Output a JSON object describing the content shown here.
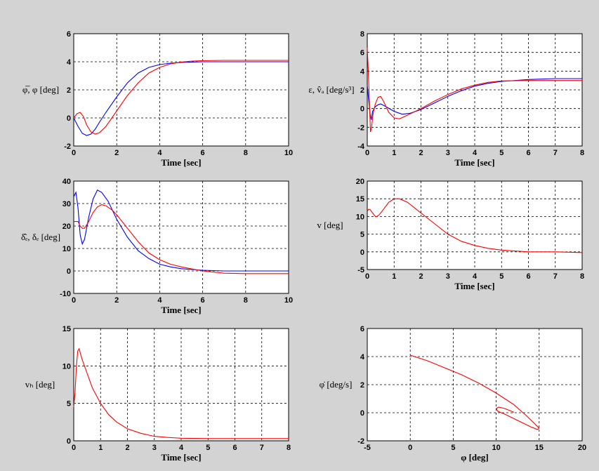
{
  "colors": {
    "background": "#d3d3d3",
    "plot_bg": "#ffffff",
    "blue": "#0000ff",
    "red": "#ff0000"
  },
  "chart_data": [
    {
      "type": "line",
      "xlabel": "Time [sec]",
      "ylabel": "φ̅, φ [deg]",
      "xlim": [
        0,
        10
      ],
      "ylim": [
        -2,
        6
      ],
      "xticks": [
        "0",
        "2",
        "4",
        "6",
        "8",
        "10"
      ],
      "yticks": [
        "-2",
        "0",
        "2",
        "4",
        "6"
      ],
      "grid": true,
      "series": [
        {
          "color": "#0000ff",
          "x": [
            0,
            0.2,
            0.4,
            0.6,
            0.8,
            1,
            1.2,
            1.5,
            2,
            2.5,
            3,
            3.5,
            4,
            4.5,
            5,
            5.5,
            6,
            7,
            8,
            10
          ],
          "y": [
            0,
            -0.6,
            -1.1,
            -1.25,
            -1.15,
            -0.8,
            -0.3,
            0.4,
            1.5,
            2.5,
            3.2,
            3.6,
            3.8,
            3.9,
            3.95,
            3.98,
            4,
            4,
            4,
            4
          ]
        },
        {
          "color": "#ff0000",
          "x": [
            0,
            0.15,
            0.3,
            0.45,
            0.6,
            0.8,
            1,
            1.2,
            1.5,
            2,
            2.5,
            3,
            3.5,
            4,
            4.5,
            5,
            5.5,
            6,
            7,
            8,
            10
          ],
          "y": [
            0,
            0.3,
            0.4,
            0.1,
            -0.5,
            -1,
            -1.15,
            -1.05,
            -0.6,
            0.5,
            1.6,
            2.5,
            3.2,
            3.6,
            3.85,
            3.98,
            4.05,
            4.08,
            4.1,
            4.1,
            4.1
          ]
        }
      ]
    },
    {
      "type": "line",
      "xlabel": "Time [sec]",
      "ylabel": "ε, v̂ₐ [deg/s³]",
      "xlim": [
        0,
        8
      ],
      "ylim": [
        -4,
        8
      ],
      "xticks": [
        "0",
        "1",
        "2",
        "3",
        "4",
        "5",
        "6",
        "7",
        "8"
      ],
      "yticks": [
        "-4",
        "-2",
        "0",
        "2",
        "4",
        "6",
        "8"
      ],
      "grid": true,
      "series": [
        {
          "color": "#0000ff",
          "x": [
            0,
            0.05,
            0.1,
            0.15,
            0.2,
            0.3,
            0.4,
            0.5,
            0.7,
            1,
            1.3,
            1.6,
            2,
            2.5,
            3,
            3.5,
            4,
            4.5,
            5,
            6,
            7,
            8
          ],
          "y": [
            2.5,
            1,
            -0.5,
            -1.2,
            -0.3,
            0.2,
            0.4,
            0.5,
            0.2,
            -0.3,
            -0.6,
            -0.5,
            -0.1,
            0.6,
            1.3,
            1.9,
            2.4,
            2.7,
            2.9,
            3.1,
            3.2,
            3.2
          ]
        },
        {
          "color": "#ff0000",
          "x": [
            0,
            0.04,
            0.08,
            0.12,
            0.16,
            0.22,
            0.3,
            0.4,
            0.5,
            0.6,
            0.8,
            1,
            1.2,
            1.5,
            2,
            2.5,
            3,
            3.5,
            4,
            4.5,
            5,
            6,
            7,
            8
          ],
          "y": [
            6.5,
            4,
            0.5,
            -2.5,
            -2,
            -0.5,
            0.5,
            1.2,
            1.3,
            0.8,
            -0.4,
            -1,
            -1.1,
            -0.7,
            0,
            0.8,
            1.5,
            2.1,
            2.5,
            2.8,
            2.95,
            3,
            3,
            3
          ]
        }
      ]
    },
    {
      "type": "line",
      "xlabel": "Time [sec]",
      "ylabel": "δ̂ₑ, δₑ [deg]",
      "xlim": [
        0,
        10
      ],
      "ylim": [
        -10,
        40
      ],
      "xticks": [
        "0",
        "2",
        "4",
        "6",
        "8",
        "10"
      ],
      "yticks": [
        "-10",
        "0",
        "10",
        "20",
        "30",
        "40"
      ],
      "grid": true,
      "series": [
        {
          "color": "#0000ff",
          "x": [
            0,
            0.1,
            0.2,
            0.3,
            0.4,
            0.5,
            0.7,
            0.9,
            1.1,
            1.3,
            1.6,
            2,
            2.5,
            3,
            3.5,
            4,
            4.5,
            5,
            6,
            7,
            8,
            10
          ],
          "y": [
            33,
            35,
            28,
            16,
            12,
            14,
            24,
            32,
            36,
            35,
            31,
            23,
            15,
            9,
            5.5,
            3,
            1.8,
            1,
            0.3,
            0,
            0,
            0
          ]
        },
        {
          "color": "#ff0000",
          "x": [
            0,
            0.2,
            0.3,
            0.4,
            0.5,
            0.7,
            0.9,
            1.1,
            1.3,
            1.5,
            1.8,
            2,
            2.5,
            3,
            3.5,
            4,
            4.5,
            5,
            6,
            7,
            8,
            10
          ],
          "y": [
            22,
            22,
            20,
            19,
            19,
            22,
            26,
            28.5,
            29.5,
            29,
            27,
            25,
            19,
            13,
            8,
            5,
            3,
            1.8,
            0,
            -1,
            -1.2,
            -1.2
          ]
        }
      ]
    },
    {
      "type": "line",
      "xlabel": "Time [sec]",
      "ylabel": "v [deg]",
      "xlim": [
        0,
        8
      ],
      "ylim": [
        -5,
        20
      ],
      "xticks": [
        "0",
        "1",
        "2",
        "3",
        "4",
        "5",
        "6",
        "7",
        "8"
      ],
      "yticks": [
        "-5",
        "0",
        "5",
        "10",
        "15",
        "20"
      ],
      "grid": true,
      "series": [
        {
          "color": "#ff0000",
          "x": [
            0,
            0.05,
            0.1,
            0.15,
            0.2,
            0.3,
            0.35,
            0.45,
            0.6,
            0.8,
            1,
            1.2,
            1.5,
            2,
            2.5,
            3,
            3.5,
            4,
            4.5,
            5,
            6,
            7,
            8
          ],
          "y": [
            11.5,
            12,
            12,
            11.5,
            11,
            10,
            10,
            10.5,
            12,
            14,
            15,
            15,
            14,
            11,
            8,
            5,
            3,
            1.8,
            1,
            0.5,
            0,
            0,
            -0.2
          ]
        }
      ]
    },
    {
      "type": "line",
      "xlabel": "Time [sec]",
      "ylabel": "vₕ [deg]",
      "xlim": [
        0,
        8
      ],
      "ylim": [
        0,
        15
      ],
      "xticks": [
        "0",
        "1",
        "2",
        "3",
        "4",
        "5",
        "6",
        "7",
        "8"
      ],
      "yticks": [
        "0",
        "5",
        "10",
        "15"
      ],
      "grid": true,
      "series": [
        {
          "color": "#ff0000",
          "x": [
            0,
            0.05,
            0.1,
            0.15,
            0.2,
            0.3,
            0.5,
            0.7,
            1,
            1.3,
            1.6,
            2,
            2.5,
            3,
            3.5,
            4,
            5,
            6,
            7,
            8
          ],
          "y": [
            4.5,
            6.5,
            10,
            12,
            12.3,
            11,
            9,
            7,
            5,
            3.5,
            2.5,
            1.6,
            1,
            0.6,
            0.45,
            0.35,
            0.3,
            0.3,
            0.3,
            0.3
          ]
        }
      ]
    },
    {
      "type": "line",
      "xlabel": "φ [deg]",
      "ylabel": "φ̇ [deg/s]",
      "xlim": [
        -5,
        20
      ],
      "ylim": [
        -2,
        6
      ],
      "xticks": [
        "-5",
        "0",
        "5",
        "10",
        "15",
        "20"
      ],
      "yticks": [
        "-2",
        "0",
        "2",
        "4",
        "6"
      ],
      "grid": true,
      "series": [
        {
          "color": "#ff0000",
          "x": [
            0,
            2,
            4,
            6,
            8,
            10,
            12,
            13.5,
            14.5,
            15,
            14.8,
            14,
            13,
            12,
            11,
            10.2,
            10,
            10.3,
            11,
            11.6,
            12,
            12
          ],
          "y": [
            4.1,
            3.7,
            3.2,
            2.7,
            2.1,
            1.4,
            0.6,
            -0.2,
            -0.8,
            -1.1,
            -1.2,
            -1,
            -0.7,
            -0.4,
            -0.1,
            0.1,
            0.3,
            0.4,
            0.3,
            0.15,
            0.05,
            0
          ]
        }
      ]
    }
  ]
}
